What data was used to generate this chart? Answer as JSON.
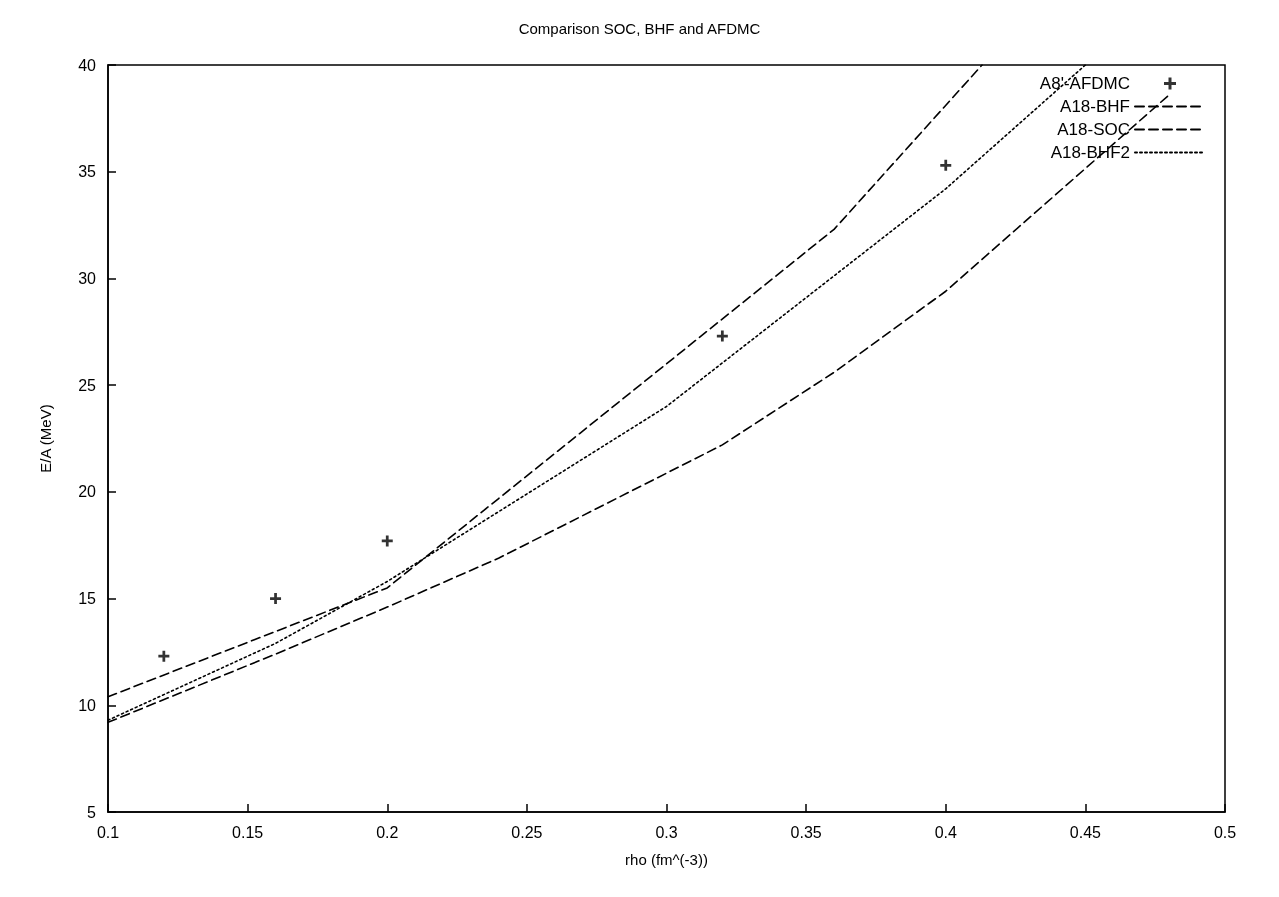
{
  "chart_data": {
    "type": "line",
    "title": "Comparison SOC, BHF and AFDMC",
    "xlabel": "rho (fm^(-3))",
    "ylabel": "E/A (MeV)",
    "xlim": [
      0.1,
      0.5
    ],
    "xticks": [
      0.1,
      0.15,
      0.2,
      0.25,
      0.3,
      0.35,
      0.4,
      0.45,
      0.5
    ],
    "ylim": [
      5,
      40
    ],
    "yticks": [
      5,
      10,
      15,
      20,
      25,
      30,
      35,
      40
    ],
    "grid": false,
    "legend": "top right",
    "series": [
      {
        "name": "A8'-AFDMC",
        "type": "scatter",
        "marker": "cross",
        "color": "#000000",
        "x": [
          0.12,
          0.16,
          0.2,
          0.32,
          0.4
        ],
        "values": [
          12.3,
          15.0,
          17.7,
          27.3,
          35.3
        ]
      },
      {
        "name": "A18-BHF",
        "line_style": "dashed",
        "color": "#000000",
        "x": [
          0.1,
          0.2,
          0.24,
          0.3,
          0.36,
          0.413
        ],
        "values": [
          10.4,
          15.5,
          19.7,
          26.0,
          32.3,
          40
        ]
      },
      {
        "name": "A18-SOC",
        "line_style": "dashed",
        "color": "#000000",
        "x": [
          0.1,
          0.16,
          0.2,
          0.24,
          0.32,
          0.36,
          0.4,
          0.48
        ],
        "values": [
          9.2,
          12.4,
          14.6,
          16.9,
          22.2,
          25.6,
          29.4,
          38.6
        ]
      },
      {
        "name": "A18-BHF2",
        "line_style": "dotted",
        "color": "#000000",
        "x": [
          0.1,
          0.16,
          0.2,
          0.3,
          0.4,
          0.45
        ],
        "values": [
          9.3,
          12.9,
          15.8,
          24.0,
          34.2,
          40
        ]
      }
    ]
  }
}
